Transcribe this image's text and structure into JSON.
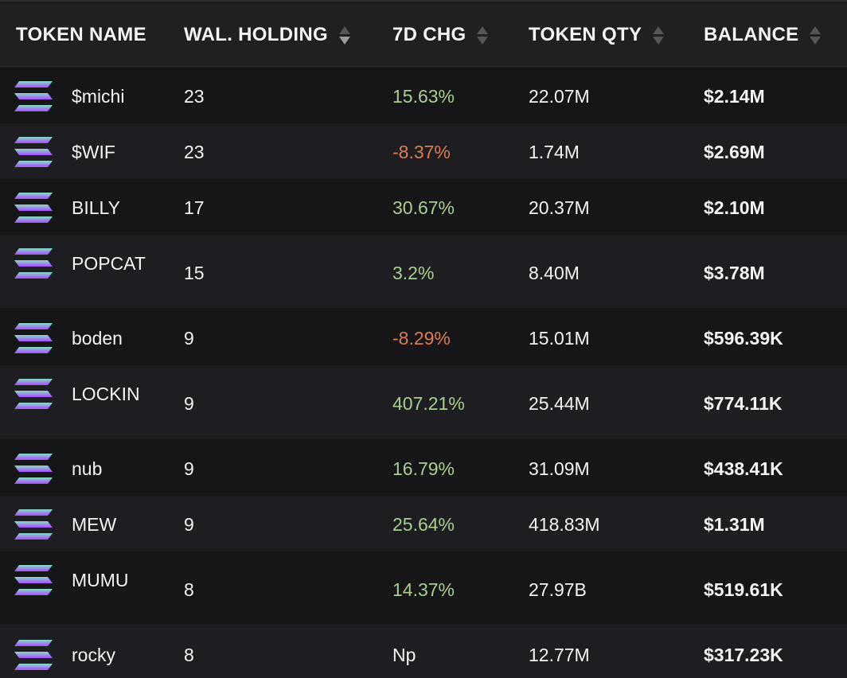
{
  "header": {
    "token_name": "TOKEN NAME",
    "wal_holding": "WAL. HOLDING",
    "chg_7d": "7D CHG",
    "token_qty": "TOKEN QTY",
    "balance": "BALANCE"
  },
  "colors": {
    "positive": "#a8cf8f",
    "negative": "#dd7d4f",
    "logo_gradient_top": "#7fe3c0",
    "logo_gradient_bottom": "#a64dff"
  },
  "icons": {
    "token_logo": "solana-logo-icon",
    "sort": "sort-arrows-icon"
  },
  "rows": [
    {
      "name": "$michi",
      "holding": "23",
      "chg": "15.63%",
      "chg_sign": "pos",
      "qty": "22.07M",
      "balance": "$2.14M"
    },
    {
      "name": "$WIF",
      "holding": "23",
      "chg": "-8.37%",
      "chg_sign": "neg",
      "qty": "1.74M",
      "balance": "$2.69M"
    },
    {
      "name": "BILLY",
      "holding": "17",
      "chg": "30.67%",
      "chg_sign": "pos",
      "qty": "20.37M",
      "balance": "$2.10M"
    },
    {
      "name": "POPCAT",
      "holding": "15",
      "chg": "3.2%",
      "chg_sign": "pos",
      "qty": "8.40M",
      "balance": "$3.78M"
    },
    {
      "name": "boden",
      "holding": "9",
      "chg": "-8.29%",
      "chg_sign": "neg",
      "qty": "15.01M",
      "balance": "$596.39K"
    },
    {
      "name": "LOCKIN",
      "holding": "9",
      "chg": "407.21%",
      "chg_sign": "pos",
      "qty": "25.44M",
      "balance": "$774.11K"
    },
    {
      "name": "nub",
      "holding": "9",
      "chg": "16.79%",
      "chg_sign": "pos",
      "qty": "31.09M",
      "balance": "$438.41K"
    },
    {
      "name": "MEW",
      "holding": "9",
      "chg": "25.64%",
      "chg_sign": "pos",
      "qty": "418.83M",
      "balance": "$1.31M"
    },
    {
      "name": "MUMU",
      "holding": "8",
      "chg": "14.37%",
      "chg_sign": "pos",
      "qty": "27.97B",
      "balance": "$519.61K"
    },
    {
      "name": "rocky",
      "holding": "8",
      "chg": "Np",
      "chg_sign": "none",
      "qty": "12.77M",
      "balance": "$317.23K"
    }
  ]
}
